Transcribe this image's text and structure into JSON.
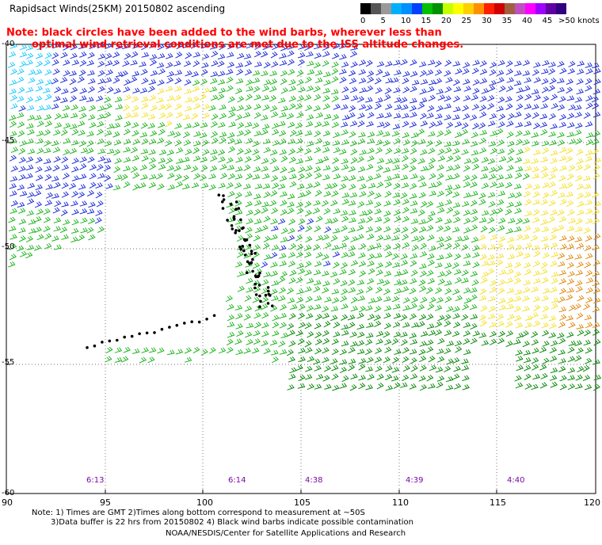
{
  "header": {
    "title": "Rapidsact Winds(25KM) 20150802 ascending",
    "note_line1": "Note: black circles have been added to the wind barbs, wherever less than",
    "note_line2": "optimal wind retrieval conditions are met due to the ISS altitude changes."
  },
  "legend": {
    "unit_label": ">50 knots",
    "ticks": [
      "0",
      "5",
      "10",
      "15",
      "20",
      "25",
      "30",
      "35",
      "40",
      "45"
    ],
    "colors": [
      "#000000",
      "#555555",
      "#999999",
      "#00b0ff",
      "#0090ff",
      "#0040ff",
      "#00c000",
      "#009000",
      "#c8ff00",
      "#ffff00",
      "#ffd000",
      "#ff9000",
      "#ff2000",
      "#d00000",
      "#a06040",
      "#c050c0",
      "#ff00ff",
      "#a000ff",
      "#6000a0",
      "#300080"
    ]
  },
  "map": {
    "lat_labels": [
      "-40",
      "-45",
      "-50",
      "-55",
      "-60"
    ],
    "lon_labels": [
      "90",
      "95",
      "100",
      "105",
      "110",
      "115",
      "120"
    ],
    "time_labels": [
      "6:13",
      "6:14",
      "4:38",
      "4:39",
      "4:40"
    ],
    "colors": {
      "green": "#22b522",
      "dark_green": "#0b8a0b",
      "blue": "#1f2fd8",
      "yellow": "#f5e030",
      "orange": "#e08a10",
      "cyan": "#20c8ff",
      "grid": "#444444"
    }
  },
  "footer": {
    "line1": "Note: 1) Times are GMT 2)Times along bottom correspond to measurement at ~50S",
    "line2": "3)Data buffer is 22 hrs from 20150802 4) Black wind barbs indicate possible contamination",
    "line3": "NOAA/NESDIS/Center for Satellite Applications and Research"
  }
}
